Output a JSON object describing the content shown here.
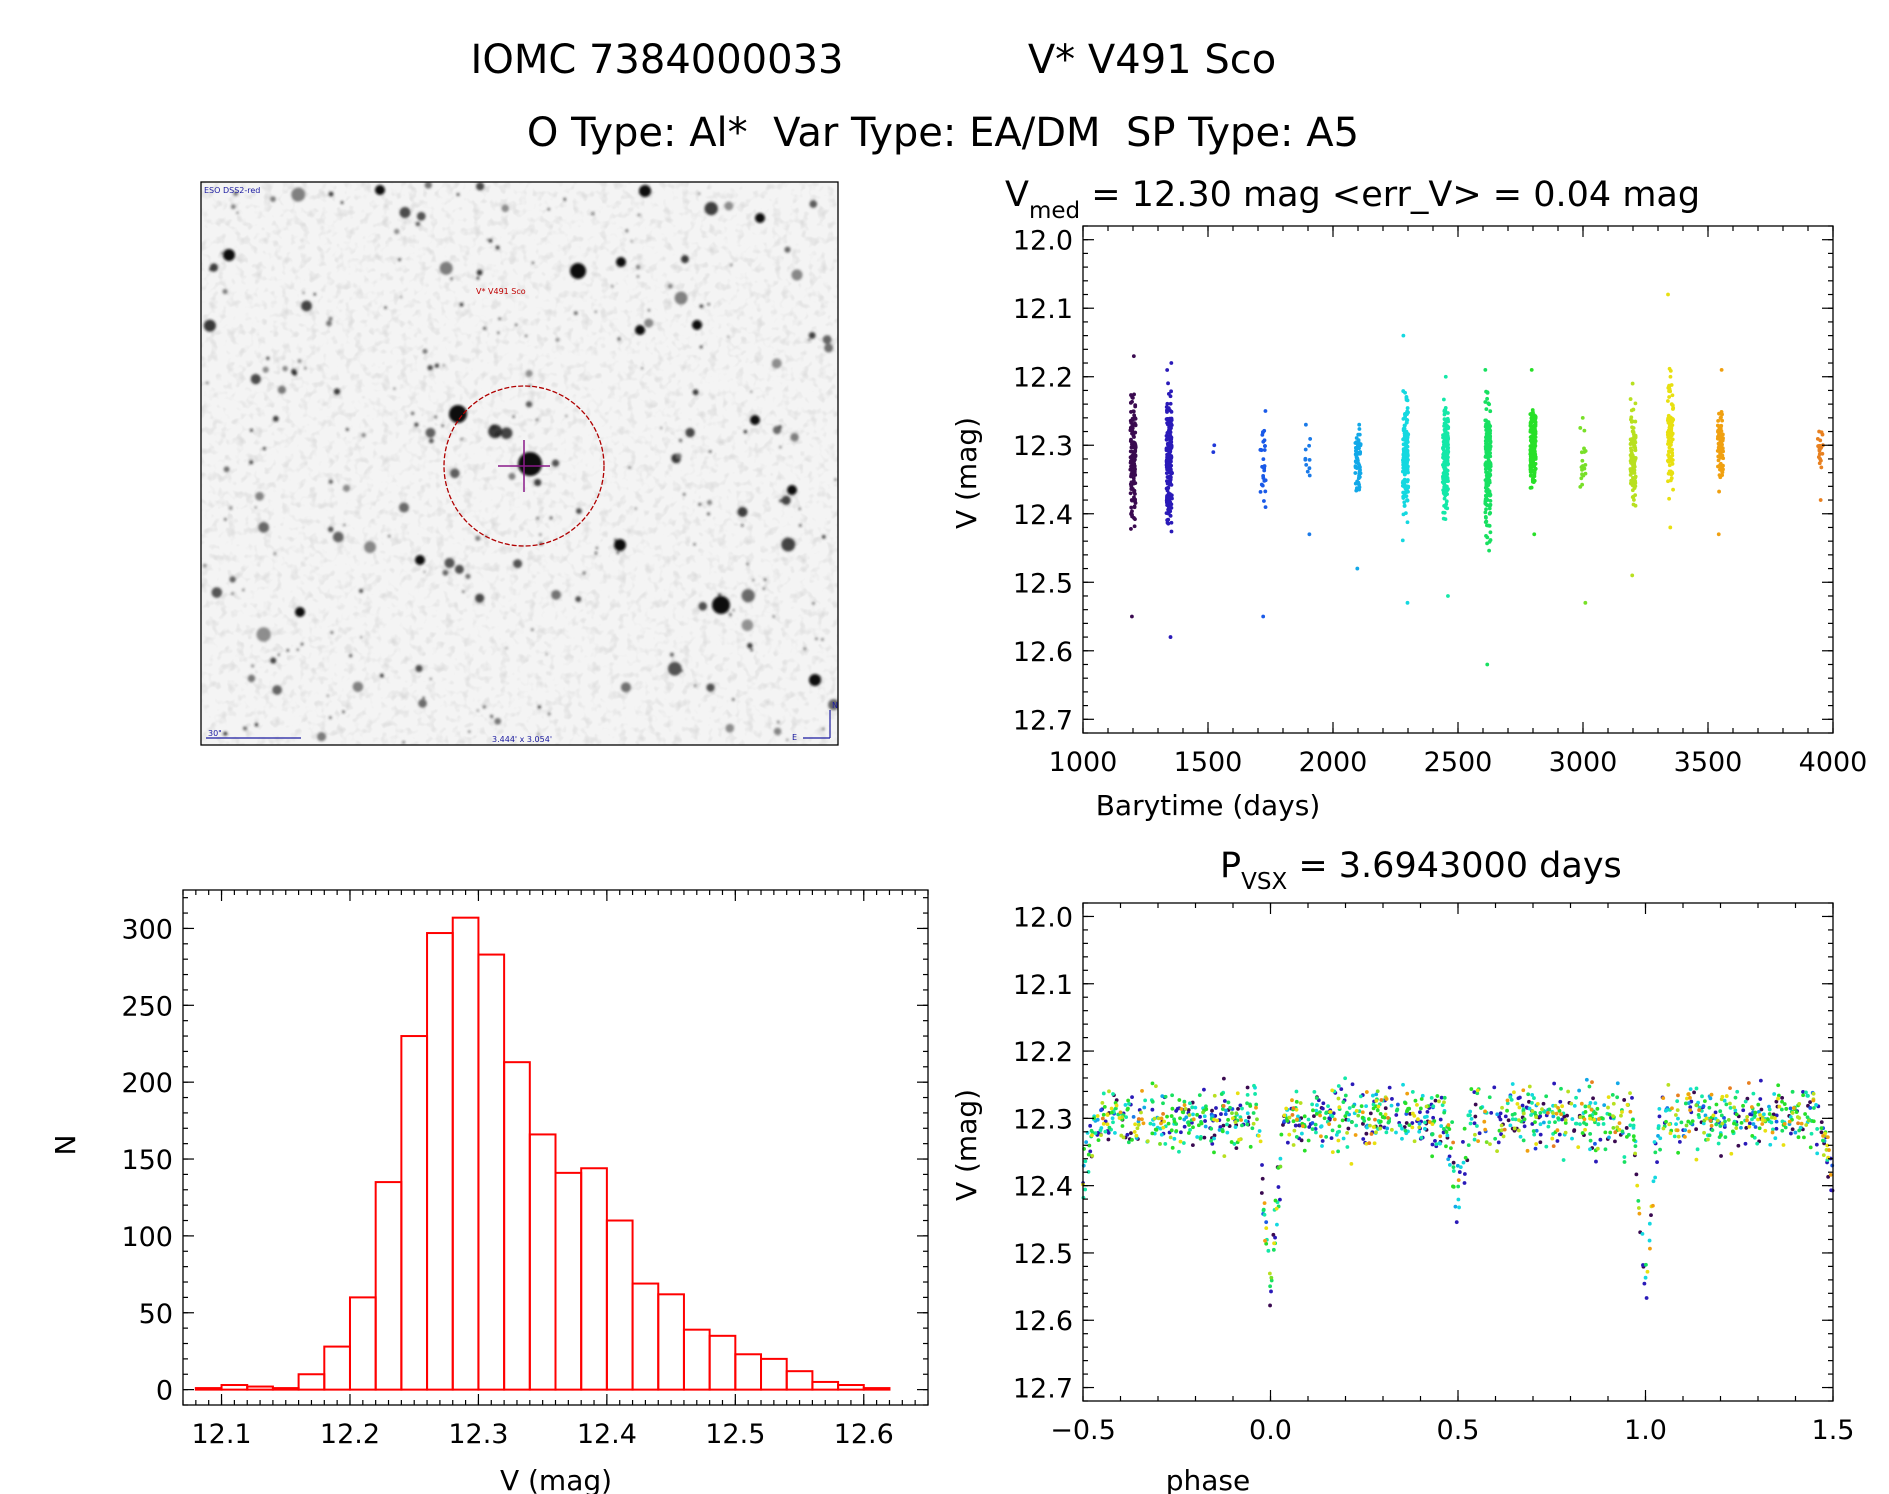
{
  "header": {
    "line1_left": "IOMC 7384000033",
    "line1_right": "V* V491 Sco",
    "line2": "O Type: Al*  Var Type: EA/DM  SP Type: A5"
  },
  "finder": {
    "survey_label": "ESO DSS2-red",
    "target_label": "V* V491 Sco",
    "scale_label": "30\"",
    "fov_label": "3.444' x 3.054'",
    "north_label": "N",
    "east_label": "E"
  },
  "lightcurve": {
    "title_prefix": "V",
    "title_sub": "med",
    "title_rest": " = 12.30 mag <err_V> = 0.04 mag",
    "xlabel": "Barytime (days)",
    "ylabel": "V (mag)"
  },
  "phased": {
    "title_prefix": "P",
    "title_sub": "VSX",
    "title_rest": " = 3.6943000 days",
    "xlabel": "phase",
    "ylabel": "V (mag)"
  },
  "histogram": {
    "xlabel": "V (mag)",
    "ylabel": "N"
  },
  "chart_data": [
    {
      "type": "scatter",
      "title": "V_med = 12.30 mag <err_V> = 0.04 mag",
      "xlabel": "Barytime (days)",
      "ylabel": "V (mag)",
      "xlim": [
        1000,
        4000
      ],
      "ylim": [
        12.72,
        11.98
      ],
      "xticks": [
        1000,
        1500,
        2000,
        2500,
        3000,
        3500,
        4000
      ],
      "xtick_labels": [
        "1000",
        "1500",
        "2000",
        "2500",
        "3000",
        "3500",
        "4000"
      ],
      "yticks": [
        12.0,
        12.1,
        12.2,
        12.3,
        12.4,
        12.5,
        12.6,
        12.7
      ],
      "ytick_labels": [
        "12.0",
        "12.1",
        "12.2",
        "12.3",
        "12.4",
        "12.5",
        "12.6",
        "12.7"
      ],
      "median_mag": 12.3,
      "clusters": [
        {
          "t": 1200,
          "color": "#3a0a50",
          "min": 12.17,
          "max": 12.55,
          "n": 140
        },
        {
          "t": 1345,
          "color": "#2a1ab8",
          "min": 12.18,
          "max": 12.58,
          "n": 200
        },
        {
          "t": 1520,
          "color": "#2038d8",
          "min": 12.3,
          "max": 12.31,
          "n": 2
        },
        {
          "t": 1720,
          "color": "#1a5ae8",
          "min": 12.25,
          "max": 12.55,
          "n": 30
        },
        {
          "t": 1900,
          "color": "#1a7ae8",
          "min": 12.27,
          "max": 12.43,
          "n": 12
        },
        {
          "t": 2100,
          "color": "#12a8e8",
          "min": 12.27,
          "max": 12.48,
          "n": 60
        },
        {
          "t": 2290,
          "color": "#14d8e0",
          "min": 12.14,
          "max": 12.53,
          "n": 160
        },
        {
          "t": 2450,
          "color": "#14e8a8",
          "min": 12.2,
          "max": 12.52,
          "n": 170
        },
        {
          "t": 2620,
          "color": "#18e060",
          "min": 12.19,
          "max": 12.62,
          "n": 170
        },
        {
          "t": 2800,
          "color": "#28e028",
          "min": 12.19,
          "max": 12.43,
          "n": 190
        },
        {
          "t": 3000,
          "color": "#78e028",
          "min": 12.26,
          "max": 12.53,
          "n": 20
        },
        {
          "t": 3200,
          "color": "#b8e020",
          "min": 12.21,
          "max": 12.49,
          "n": 110
        },
        {
          "t": 3350,
          "color": "#e8e010",
          "min": 12.08,
          "max": 12.42,
          "n": 100
        },
        {
          "t": 3550,
          "color": "#f0a010",
          "min": 12.19,
          "max": 12.43,
          "n": 80
        },
        {
          "t": 3950,
          "color": "#e88020",
          "min": 12.28,
          "max": 12.38,
          "n": 25
        }
      ]
    },
    {
      "type": "scatter",
      "title": "P_VSX = 3.6943000 days",
      "xlabel": "phase",
      "ylabel": "V (mag)",
      "xlim": [
        -0.5,
        1.5
      ],
      "ylim": [
        12.72,
        11.98
      ],
      "xticks": [
        -0.5,
        0.0,
        0.5,
        1.0,
        1.5
      ],
      "xtick_labels": [
        "-0.5",
        "0.0",
        "0.5",
        "1.0",
        "1.5"
      ],
      "yticks": [
        12.0,
        12.1,
        12.2,
        12.3,
        12.4,
        12.5,
        12.6,
        12.7
      ],
      "ytick_labels": [
        "12.0",
        "12.1",
        "12.2",
        "12.3",
        "12.4",
        "12.5",
        "12.6",
        "12.7"
      ],
      "period_days": 3.6943,
      "baseline_mag": 12.3,
      "primary_eclipse": {
        "phase": 0.0,
        "depth_mag": 12.55
      },
      "secondary_eclipse": {
        "phase": 0.5,
        "depth_mag": 12.4
      }
    },
    {
      "type": "bar",
      "title": "",
      "xlabel": "V (mag)",
      "ylabel": "N",
      "xlim": [
        12.07,
        12.65
      ],
      "ylim": [
        -10,
        325
      ],
      "xticks": [
        12.1,
        12.2,
        12.3,
        12.4,
        12.5,
        12.6
      ],
      "xtick_labels": [
        "12.1",
        "12.2",
        "12.3",
        "12.4",
        "12.5",
        "12.6"
      ],
      "yticks": [
        0,
        50,
        100,
        150,
        200,
        250,
        300
      ],
      "ytick_labels": [
        "0",
        "50",
        "100",
        "150",
        "200",
        "250",
        "300"
      ],
      "bin_width": 0.02,
      "bin_left_edges": [
        12.08,
        12.1,
        12.12,
        12.14,
        12.16,
        12.18,
        12.2,
        12.22,
        12.24,
        12.26,
        12.28,
        12.3,
        12.32,
        12.34,
        12.36,
        12.38,
        12.4,
        12.42,
        12.44,
        12.46,
        12.48,
        12.5,
        12.52,
        12.54,
        12.56,
        12.58,
        12.6
      ],
      "values": [
        1,
        3,
        2,
        1,
        10,
        28,
        60,
        135,
        230,
        297,
        307,
        283,
        213,
        166,
        141,
        144,
        110,
        69,
        62,
        39,
        35,
        23,
        20,
        12,
        5,
        3,
        1
      ],
      "color": "#ff0000"
    }
  ]
}
